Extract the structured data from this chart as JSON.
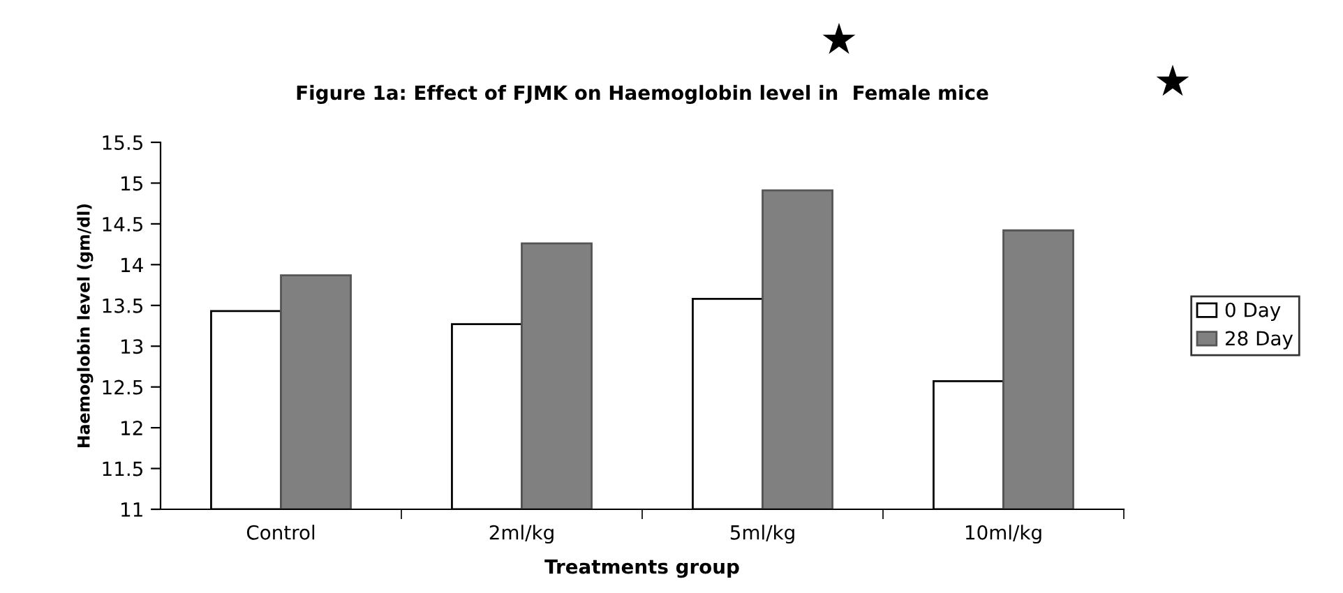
{
  "chart_data": {
    "type": "bar",
    "title": "Figure 1a: Effect of FJMK on Haemoglobin level in  Female mice",
    "xlabel": "Treatments group",
    "ylabel": "Haemoglobin level (gm/dl)",
    "categories": [
      "Control",
      "2ml/kg",
      "5ml/kg",
      "10ml/kg"
    ],
    "series": [
      {
        "name": "0 Day",
        "color": "#ffffff",
        "values": [
          13.43,
          13.27,
          13.58,
          12.57
        ]
      },
      {
        "name": "28 Day",
        "color": "#808080",
        "values": [
          13.87,
          14.26,
          14.91,
          14.42
        ]
      }
    ],
    "ylim": [
      11,
      15.5
    ],
    "yticks": [
      11,
      11.5,
      12,
      12.5,
      13,
      13.5,
      14,
      14.5,
      15,
      15.5
    ],
    "grid": false,
    "legend": "right",
    "annotations": [
      "★",
      "★"
    ]
  }
}
